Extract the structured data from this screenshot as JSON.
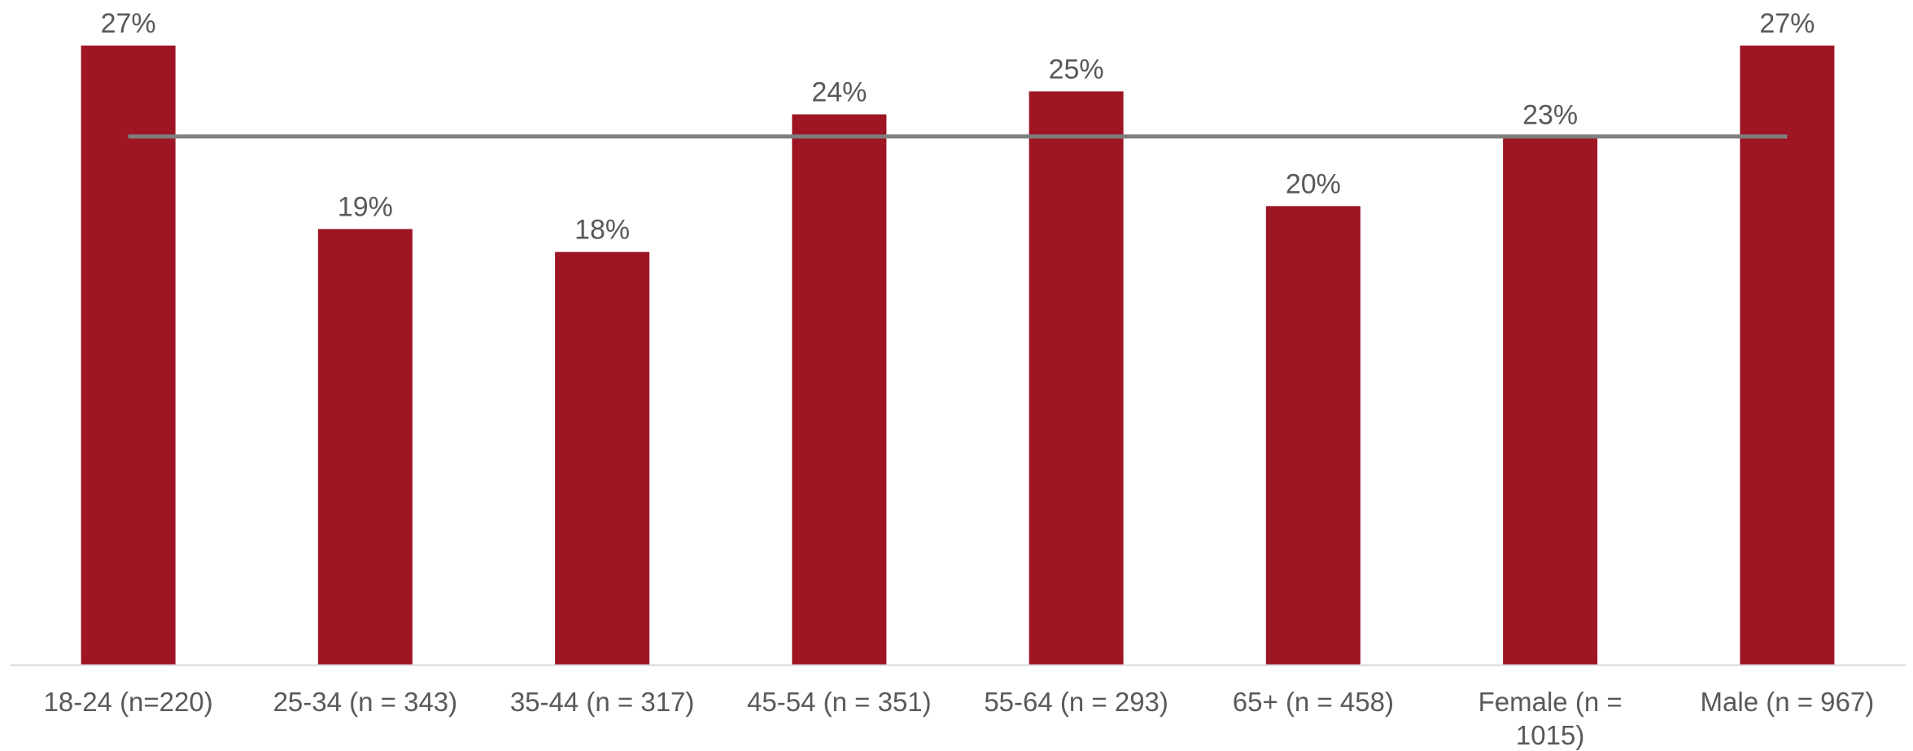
{
  "chart_data": {
    "type": "bar",
    "categories": [
      [
        "18-24  (n=220)"
      ],
      [
        "25-34 (n = 343)"
      ],
      [
        "35-44  (n = 317)"
      ],
      [
        "45-54 (n = 351)"
      ],
      [
        "55-64 (n = 293)"
      ],
      [
        "65+ (n = 458)"
      ],
      [
        "Female (n =",
        "1015)"
      ],
      [
        "Male (n = 967)"
      ]
    ],
    "values": [
      27,
      19,
      18,
      24,
      25,
      20,
      23,
      27
    ],
    "value_labels": [
      "27%",
      "19%",
      "18%",
      "24%",
      "25%",
      "20%",
      "23%",
      "27%"
    ],
    "reference_line": {
      "value": 23
    },
    "ylim": [
      0,
      27
    ],
    "bar_color": "#9E1524",
    "reference_line_color": "#7F7F7F",
    "axis_color": "#D9D9D9",
    "label_color": "#595959",
    "grid": false
  }
}
